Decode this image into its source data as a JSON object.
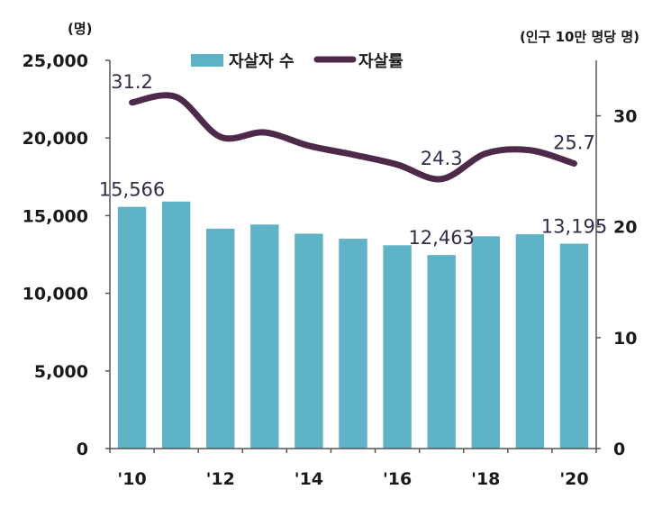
{
  "chart_data": {
    "type": "bar",
    "x": [
      "'10",
      "'11",
      "'12",
      "'13",
      "'14",
      "'15",
      "'16",
      "'17",
      "'18",
      "'19",
      "'20"
    ],
    "x_tick_labels": [
      "'10",
      "'12",
      "'14",
      "'16",
      "'18",
      "'20"
    ],
    "series": [
      {
        "name": "자살자 수",
        "type": "bar",
        "axis": "left",
        "color": "#5fb3c7",
        "values": [
          15566,
          15906,
          14160,
          14427,
          13836,
          13513,
          13092,
          12463,
          13670,
          13799,
          13195
        ]
      },
      {
        "name": "자살률",
        "type": "line",
        "axis": "right",
        "color": "#4e2a4a",
        "values": [
          31.2,
          31.7,
          28.1,
          28.5,
          27.3,
          26.5,
          25.6,
          24.3,
          26.6,
          26.9,
          25.7
        ]
      }
    ],
    "left_axis": {
      "unit": "(명)",
      "ylim": [
        0,
        25000
      ],
      "ticks": [
        0,
        5000,
        10000,
        15000,
        20000,
        25000
      ],
      "tick_labels": [
        "0",
        "5,000",
        "10,000",
        "15,000",
        "20,000",
        "25,000"
      ]
    },
    "right_axis": {
      "unit": "(인구 10만 명당 명)",
      "ylim": [
        0,
        35
      ],
      "ticks": [
        0,
        10,
        20,
        30
      ],
      "tick_labels": [
        "0",
        "10",
        "20",
        "30"
      ]
    },
    "data_labels": [
      {
        "series": 0,
        "index": 0,
        "text": "15,566"
      },
      {
        "series": 0,
        "index": 7,
        "text": "12,463"
      },
      {
        "series": 0,
        "index": 10,
        "text": "13,195"
      },
      {
        "series": 1,
        "index": 0,
        "text": "31.2"
      },
      {
        "series": 1,
        "index": 7,
        "text": "24.3"
      },
      {
        "series": 1,
        "index": 10,
        "text": "25.7"
      }
    ],
    "legend": {
      "position": "top"
    },
    "grid": false
  }
}
